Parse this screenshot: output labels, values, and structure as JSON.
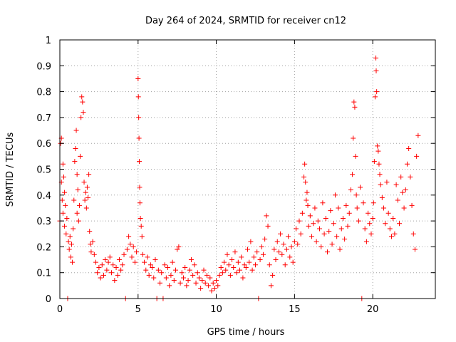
{
  "chart_data": {
    "type": "scatter",
    "title": "Day 264 of 2024, SRMTID for receiver cn12",
    "xlabel": "GPS time / hours",
    "ylabel": "SRMTID / TECUs",
    "xlim": [
      0,
      24
    ],
    "ylim": [
      0,
      1
    ],
    "x_ticks": [
      0,
      5,
      10,
      15,
      20
    ],
    "y_ticks": [
      0,
      0.1,
      0.2,
      0.3,
      0.4,
      0.5,
      0.6,
      0.7,
      0.8,
      0.9,
      1
    ],
    "x_tick_labels": [
      "0",
      "5",
      "10",
      "15",
      "20"
    ],
    "y_tick_labels": [
      "0",
      "0.1",
      "0.2",
      "0.3",
      "0.4",
      "0.5",
      "0.6",
      "0.7",
      "0.8",
      "0.9",
      "1"
    ],
    "grid": true,
    "marker": "+",
    "series": [
      {
        "name": "SRMTID",
        "color": "#ff0000",
        "points": [
          [
            0.0,
            0.3
          ],
          [
            0.05,
            0.6
          ],
          [
            0.1,
            0.62
          ],
          [
            0.1,
            0.45
          ],
          [
            0.15,
            0.38
          ],
          [
            0.2,
            0.52
          ],
          [
            0.2,
            0.33
          ],
          [
            0.25,
            0.47
          ],
          [
            0.3,
            0.28
          ],
          [
            0.3,
            0.41
          ],
          [
            0.35,
            0.36
          ],
          [
            0.4,
            0.25
          ],
          [
            0.45,
            0.31
          ],
          [
            0.5,
            0.0
          ],
          [
            0.55,
            0.22
          ],
          [
            0.6,
            0.19
          ],
          [
            0.65,
            0.24
          ],
          [
            0.7,
            0.16
          ],
          [
            0.75,
            0.21
          ],
          [
            0.8,
            0.14
          ],
          [
            0.85,
            0.27
          ],
          [
            0.9,
            0.38
          ],
          [
            0.95,
            0.53
          ],
          [
            1.0,
            0.58
          ],
          [
            1.05,
            0.65
          ],
          [
            1.1,
            0.48
          ],
          [
            1.1,
            0.33
          ],
          [
            1.15,
            0.42
          ],
          [
            1.2,
            0.3
          ],
          [
            1.25,
            0.36
          ],
          [
            1.3,
            0.55
          ],
          [
            1.35,
            0.7
          ],
          [
            1.4,
            0.78
          ],
          [
            1.45,
            0.76
          ],
          [
            1.5,
            0.72
          ],
          [
            1.55,
            0.45
          ],
          [
            1.6,
            0.38
          ],
          [
            1.65,
            0.41
          ],
          [
            1.7,
            0.35
          ],
          [
            1.75,
            0.43
          ],
          [
            1.8,
            0.39
          ],
          [
            1.85,
            0.48
          ],
          [
            1.9,
            0.26
          ],
          [
            1.95,
            0.21
          ],
          [
            2.0,
            0.18
          ],
          [
            2.1,
            0.22
          ],
          [
            2.2,
            0.17
          ],
          [
            2.3,
            0.14
          ],
          [
            2.4,
            0.1
          ],
          [
            2.5,
            0.12
          ],
          [
            2.6,
            0.08
          ],
          [
            2.7,
            0.13
          ],
          [
            2.8,
            0.09
          ],
          [
            2.9,
            0.15
          ],
          [
            3.0,
            0.11
          ],
          [
            3.1,
            0.14
          ],
          [
            3.2,
            0.16
          ],
          [
            3.3,
            0.1
          ],
          [
            3.4,
            0.13
          ],
          [
            3.5,
            0.07
          ],
          [
            3.6,
            0.12
          ],
          [
            3.7,
            0.09
          ],
          [
            3.8,
            0.15
          ],
          [
            3.9,
            0.11
          ],
          [
            4.0,
            0.13
          ],
          [
            4.1,
            0.17
          ],
          [
            4.2,
            0.0
          ],
          [
            4.3,
            0.19
          ],
          [
            4.4,
            0.24
          ],
          [
            4.5,
            0.21
          ],
          [
            4.6,
            0.16
          ],
          [
            4.7,
            0.2
          ],
          [
            4.8,
            0.14
          ],
          [
            4.9,
            0.18
          ],
          [
            5.0,
            0.85
          ],
          [
            5.02,
            0.78
          ],
          [
            5.04,
            0.7
          ],
          [
            5.06,
            0.62
          ],
          [
            5.08,
            0.53
          ],
          [
            5.1,
            0.43
          ],
          [
            5.12,
            0.37
          ],
          [
            5.15,
            0.31
          ],
          [
            5.2,
            0.28
          ],
          [
            5.25,
            0.24
          ],
          [
            5.3,
            0.17
          ],
          [
            5.4,
            0.14
          ],
          [
            5.5,
            0.11
          ],
          [
            5.6,
            0.16
          ],
          [
            5.7,
            0.09
          ],
          [
            5.8,
            0.13
          ],
          [
            5.9,
            0.12
          ],
          [
            6.0,
            0.08
          ],
          [
            6.1,
            0.15
          ],
          [
            6.2,
            0.0
          ],
          [
            6.3,
            0.11
          ],
          [
            6.4,
            0.06
          ],
          [
            6.5,
            0.1
          ],
          [
            6.6,
            0.0
          ],
          [
            6.7,
            0.13
          ],
          [
            6.8,
            0.08
          ],
          [
            6.9,
            0.12
          ],
          [
            7.0,
            0.05
          ],
          [
            7.1,
            0.09
          ],
          [
            7.2,
            0.14
          ],
          [
            7.3,
            0.07
          ],
          [
            7.4,
            0.11
          ],
          [
            7.5,
            0.19
          ],
          [
            7.6,
            0.2
          ],
          [
            7.7,
            0.06
          ],
          [
            7.8,
            0.1
          ],
          [
            7.9,
            0.08
          ],
          [
            8.0,
            0.12
          ],
          [
            8.1,
            0.05
          ],
          [
            8.2,
            0.07
          ],
          [
            8.3,
            0.11
          ],
          [
            8.4,
            0.15
          ],
          [
            8.5,
            0.09
          ],
          [
            8.6,
            0.13
          ],
          [
            8.7,
            0.06
          ],
          [
            8.8,
            0.1
          ],
          [
            8.9,
            0.08
          ],
          [
            9.0,
            0.04
          ],
          [
            9.1,
            0.07
          ],
          [
            9.2,
            0.11
          ],
          [
            9.3,
            0.06
          ],
          [
            9.4,
            0.09
          ],
          [
            9.5,
            0.05
          ],
          [
            9.6,
            0.08
          ],
          [
            9.7,
            0.03
          ],
          [
            9.8,
            0.06
          ],
          [
            9.9,
            0.04
          ],
          [
            10.0,
            0.07
          ],
          [
            10.1,
            0.05
          ],
          [
            10.2,
            0.09
          ],
          [
            10.3,
            0.12
          ],
          [
            10.4,
            0.1
          ],
          [
            10.5,
            0.14
          ],
          [
            10.6,
            0.11
          ],
          [
            10.7,
            0.17
          ],
          [
            10.8,
            0.13
          ],
          [
            10.9,
            0.09
          ],
          [
            11.0,
            0.15
          ],
          [
            11.1,
            0.12
          ],
          [
            11.2,
            0.18
          ],
          [
            11.3,
            0.1
          ],
          [
            11.4,
            0.14
          ],
          [
            11.5,
            0.11
          ],
          [
            11.6,
            0.16
          ],
          [
            11.7,
            0.08
          ],
          [
            11.8,
            0.13
          ],
          [
            11.9,
            0.12
          ],
          [
            12.0,
            0.19
          ],
          [
            12.1,
            0.14
          ],
          [
            12.2,
            0.22
          ],
          [
            12.3,
            0.11
          ],
          [
            12.4,
            0.16
          ],
          [
            12.5,
            0.13
          ],
          [
            12.6,
            0.18
          ],
          [
            12.7,
            0.0
          ],
          [
            12.8,
            0.15
          ],
          [
            12.9,
            0.2
          ],
          [
            13.0,
            0.17
          ],
          [
            13.1,
            0.23
          ],
          [
            13.2,
            0.32
          ],
          [
            13.3,
            0.28
          ],
          [
            13.4,
            0.13
          ],
          [
            13.5,
            0.05
          ],
          [
            13.6,
            0.09
          ],
          [
            13.7,
            0.19
          ],
          [
            13.8,
            0.15
          ],
          [
            13.9,
            0.22
          ],
          [
            14.0,
            0.18
          ],
          [
            14.1,
            0.25
          ],
          [
            14.2,
            0.17
          ],
          [
            14.3,
            0.21
          ],
          [
            14.4,
            0.13
          ],
          [
            14.5,
            0.19
          ],
          [
            14.6,
            0.24
          ],
          [
            14.7,
            0.16
          ],
          [
            14.8,
            0.2
          ],
          [
            14.9,
            0.14
          ],
          [
            15.0,
            0.22
          ],
          [
            15.1,
            0.27
          ],
          [
            15.2,
            0.21
          ],
          [
            15.3,
            0.3
          ],
          [
            15.4,
            0.25
          ],
          [
            15.5,
            0.33
          ],
          [
            15.6,
            0.47
          ],
          [
            15.65,
            0.52
          ],
          [
            15.7,
            0.45
          ],
          [
            15.75,
            0.38
          ],
          [
            15.8,
            0.41
          ],
          [
            15.85,
            0.36
          ],
          [
            15.9,
            0.28
          ],
          [
            16.0,
            0.32
          ],
          [
            16.1,
            0.24
          ],
          [
            16.2,
            0.29
          ],
          [
            16.3,
            0.35
          ],
          [
            16.4,
            0.22
          ],
          [
            16.5,
            0.3
          ],
          [
            16.6,
            0.27
          ],
          [
            16.7,
            0.2
          ],
          [
            16.8,
            0.37
          ],
          [
            16.9,
            0.25
          ],
          [
            17.0,
            0.31
          ],
          [
            17.1,
            0.18
          ],
          [
            17.2,
            0.26
          ],
          [
            17.3,
            0.34
          ],
          [
            17.4,
            0.21
          ],
          [
            17.5,
            0.29
          ],
          [
            17.6,
            0.4
          ],
          [
            17.7,
            0.24
          ],
          [
            17.8,
            0.35
          ],
          [
            17.9,
            0.19
          ],
          [
            18.0,
            0.27
          ],
          [
            18.1,
            0.31
          ],
          [
            18.2,
            0.23
          ],
          [
            18.3,
            0.36
          ],
          [
            18.4,
            0.28
          ],
          [
            18.5,
            0.33
          ],
          [
            18.6,
            0.42
          ],
          [
            18.7,
            0.48
          ],
          [
            18.75,
            0.62
          ],
          [
            18.8,
            0.76
          ],
          [
            18.85,
            0.74
          ],
          [
            18.9,
            0.55
          ],
          [
            18.95,
            0.4
          ],
          [
            19.0,
            0.35
          ],
          [
            19.1,
            0.3
          ],
          [
            19.2,
            0.43
          ],
          [
            19.3,
            0.0
          ],
          [
            19.4,
            0.37
          ],
          [
            19.5,
            0.27
          ],
          [
            19.6,
            0.22
          ],
          [
            19.7,
            0.33
          ],
          [
            19.8,
            0.29
          ],
          [
            19.9,
            0.25
          ],
          [
            20.0,
            0.31
          ],
          [
            20.05,
            0.37
          ],
          [
            20.1,
            0.53
          ],
          [
            20.15,
            0.78
          ],
          [
            20.2,
            0.93
          ],
          [
            20.22,
            0.88
          ],
          [
            20.25,
            0.8
          ],
          [
            20.3,
            0.59
          ],
          [
            20.35,
            0.57
          ],
          [
            20.4,
            0.52
          ],
          [
            20.45,
            0.48
          ],
          [
            20.5,
            0.44
          ],
          [
            20.6,
            0.39
          ],
          [
            20.7,
            0.35
          ],
          [
            20.8,
            0.29
          ],
          [
            20.9,
            0.45
          ],
          [
            21.0,
            0.33
          ],
          [
            21.1,
            0.27
          ],
          [
            21.2,
            0.24
          ],
          [
            21.3,
            0.31
          ],
          [
            21.4,
            0.25
          ],
          [
            21.5,
            0.44
          ],
          [
            21.6,
            0.38
          ],
          [
            21.7,
            0.29
          ],
          [
            21.8,
            0.47
          ],
          [
            21.9,
            0.41
          ],
          [
            22.0,
            0.35
          ],
          [
            22.1,
            0.42
          ],
          [
            22.2,
            0.52
          ],
          [
            22.3,
            0.58
          ],
          [
            22.4,
            0.47
          ],
          [
            22.5,
            0.36
          ],
          [
            22.6,
            0.25
          ],
          [
            22.7,
            0.19
          ],
          [
            22.8,
            0.55
          ],
          [
            22.9,
            0.63
          ]
        ]
      }
    ]
  }
}
